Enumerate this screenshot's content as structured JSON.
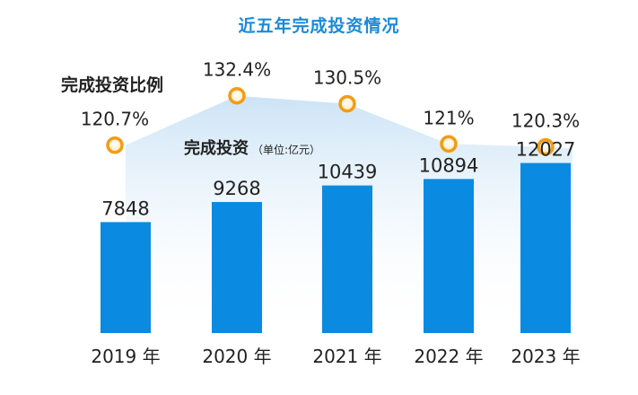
{
  "chart_data": {
    "type": "bar",
    "title": "近五年完成投资情况",
    "categories": [
      "2019 年",
      "2020 年",
      "2021 年",
      "2022 年",
      "2023 年"
    ],
    "series": [
      {
        "name": "完成投资",
        "unit": "（单位:亿元）",
        "values": [
          7848,
          9268,
          10439,
          10894,
          12027
        ],
        "value_labels": [
          "7848",
          "9268",
          "10439",
          "10894",
          "12027"
        ]
      },
      {
        "name": "完成投资比例",
        "values": [
          120.7,
          132.4,
          130.5,
          121,
          120.3
        ],
        "value_labels": [
          "120.7%",
          "132.4%",
          "130.5%",
          "121%",
          "120.3%"
        ]
      }
    ],
    "colors": {
      "bar": "#0a8ae0",
      "marker_stroke": "#f39c12",
      "area_top": "#c9e2f6",
      "title": "#1a8ad8"
    }
  }
}
